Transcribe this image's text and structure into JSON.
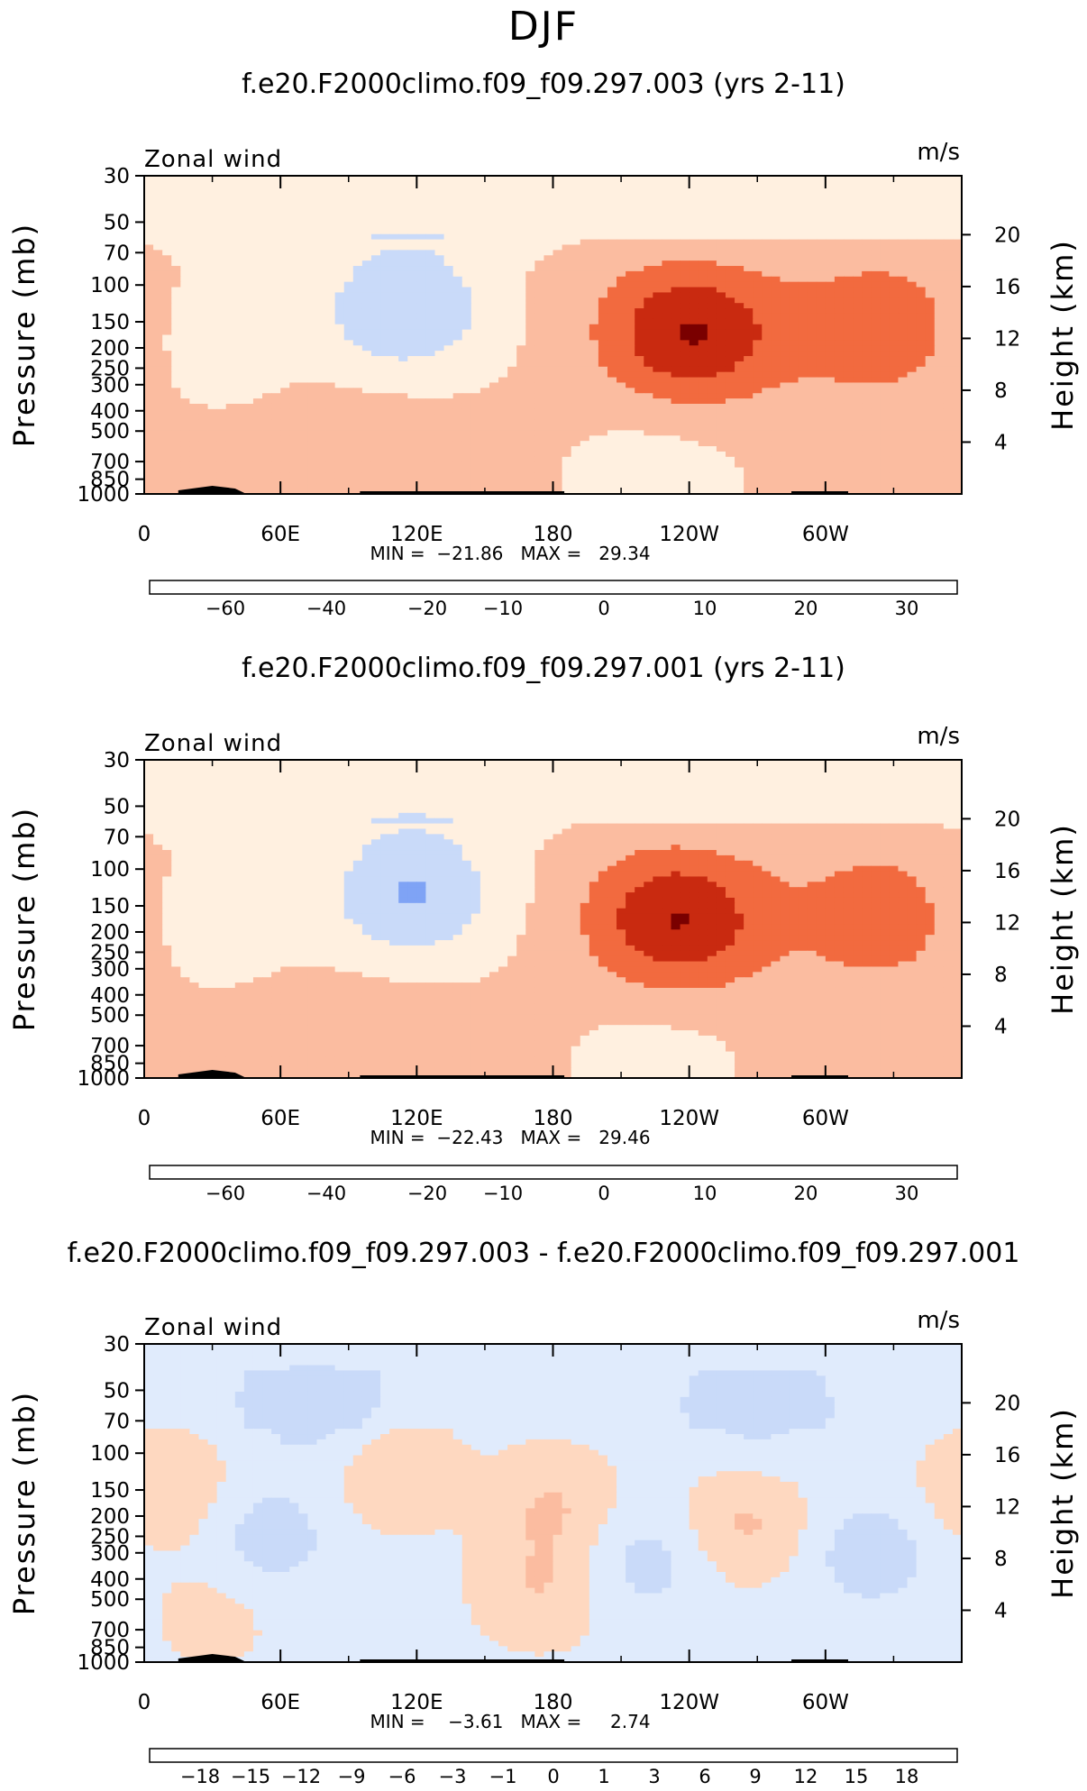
{
  "page": {
    "title": "DJF"
  },
  "colors": {
    "diverging_scale": [
      "#00008c",
      "#1a33cc",
      "#2b5ce6",
      "#4d7ff2",
      "#7fa3f5",
      "#a8c4f7",
      "#c9daf9",
      "#e0ebfc",
      "#fff0e0",
      "#fed8c0",
      "#fbbca0",
      "#f89670",
      "#f26a3f",
      "#e84a1f",
      "#c92a10",
      "#a01508",
      "#7a0000"
    ]
  },
  "panels": [
    {
      "title": "f.e20.F2000climo.f09_f09.297.003 (yrs 2-11)",
      "variable_label": "Zonal wind",
      "units_label": "m/s",
      "stats_label": "MIN =  −21.86   MAX =   29.34",
      "min": -21.86,
      "max": 29.34,
      "colorbar_ticks": [
        "−60",
        "−40",
        "−20",
        "−10",
        "0",
        "10",
        "20",
        "30"
      ]
    },
    {
      "title": "f.e20.F2000climo.f09_f09.297.001 (yrs 2-11)",
      "variable_label": "Zonal wind",
      "units_label": "m/s",
      "stats_label": "MIN =  −22.43   MAX =   29.46",
      "min": -22.43,
      "max": 29.46,
      "colorbar_ticks": [
        "−60",
        "−40",
        "−20",
        "−10",
        "0",
        "10",
        "20",
        "30"
      ]
    },
    {
      "title": "f.e20.F2000climo.f09_f09.297.003 - f.e20.F2000climo.f09_f09.297.001",
      "variable_label": "Zonal wind",
      "units_label": "m/s",
      "stats_label": "MIN =    −3.61   MAX =     2.74",
      "min": -3.61,
      "max": 2.74,
      "colorbar_ticks": [
        "−18",
        "−15",
        "−12",
        "−9",
        "−6",
        "−3",
        "−1",
        "0",
        "1",
        "3",
        "6",
        "9",
        "12",
        "15",
        "18"
      ]
    }
  ],
  "chart_data": [
    {
      "type": "heatmap",
      "title": "f.e20.F2000climo.f09_f09.297.003 (yrs 2-11)",
      "xlabel": "",
      "ylabel": "Pressure (mb)",
      "ylabel_right": "Height (km)",
      "x_ticks": [
        "0",
        "60E",
        "120E",
        "180",
        "120W",
        "60W"
      ],
      "y_ticks": [
        "30",
        "50",
        "70",
        "100",
        "150",
        "200",
        "250",
        "300",
        "400",
        "500",
        "700",
        "850",
        "1000"
      ],
      "y_ticks_right": [
        "20",
        "16",
        "12",
        "8",
        "4"
      ],
      "y_scale": "log",
      "xlim": [
        0,
        360
      ],
      "ylim": [
        1000,
        30
      ],
      "min": -21.86,
      "max": 29.34,
      "levels": [
        -60,
        -40,
        -20,
        -10,
        0,
        10,
        20,
        30
      ],
      "features": [
        {
          "lon": 115,
          "p": 130,
          "value": -21
        },
        {
          "lon": 30,
          "p": 170,
          "value": -7
        },
        {
          "lon": 240,
          "p": 170,
          "value": 29
        },
        {
          "lon": 325,
          "p": 160,
          "value": 16
        },
        {
          "lon": 285,
          "p": 190,
          "value": 2
        },
        {
          "lon": 100,
          "p": 680,
          "value": 7
        },
        {
          "lon": 225,
          "p": 800,
          "value": -6
        }
      ]
    },
    {
      "type": "heatmap",
      "title": "f.e20.F2000climo.f09_f09.297.001 (yrs 2-11)",
      "xlabel": "",
      "ylabel": "Pressure (mb)",
      "ylabel_right": "Height (km)",
      "x_ticks": [
        "0",
        "60E",
        "120E",
        "180",
        "120W",
        "60W"
      ],
      "y_ticks": [
        "30",
        "50",
        "70",
        "100",
        "150",
        "200",
        "250",
        "300",
        "400",
        "500",
        "700",
        "850",
        "1000"
      ],
      "y_ticks_right": [
        "20",
        "16",
        "12",
        "8",
        "4"
      ],
      "y_scale": "log",
      "xlim": [
        0,
        360
      ],
      "ylim": [
        1000,
        30
      ],
      "min": -22.43,
      "max": 29.46,
      "levels": [
        -60,
        -40,
        -20,
        -10,
        0,
        10,
        20,
        30
      ],
      "features": [
        {
          "lon": 118,
          "p": 130,
          "value": -22
        },
        {
          "lon": 28,
          "p": 165,
          "value": -7
        },
        {
          "lon": 235,
          "p": 175,
          "value": 29
        },
        {
          "lon": 325,
          "p": 170,
          "value": 15
        },
        {
          "lon": 290,
          "p": 190,
          "value": 1
        },
        {
          "lon": 100,
          "p": 700,
          "value": 6
        },
        {
          "lon": 225,
          "p": 820,
          "value": -5
        }
      ]
    },
    {
      "type": "heatmap",
      "title": "f.e20.F2000climo.f09_f09.297.003 - f.e20.F2000climo.f09_f09.297.001",
      "xlabel": "",
      "ylabel": "Pressure (mb)",
      "ylabel_right": "Height (km)",
      "x_ticks": [
        "0",
        "60E",
        "120E",
        "180",
        "120W",
        "60W"
      ],
      "y_ticks": [
        "30",
        "50",
        "70",
        "100",
        "150",
        "200",
        "250",
        "300",
        "400",
        "500",
        "700",
        "850",
        "1000"
      ],
      "y_ticks_right": [
        "20",
        "16",
        "12",
        "8",
        "4"
      ],
      "y_scale": "log",
      "xlim": [
        0,
        360
      ],
      "ylim": [
        1000,
        30
      ],
      "min": -3.61,
      "max": 2.74,
      "levels": [
        -18,
        -15,
        -12,
        -9,
        -6,
        -3,
        -1,
        0,
        1,
        3,
        6,
        9,
        12,
        15,
        18
      ],
      "features": [
        {
          "lon": 75,
          "p": 60,
          "value": -1.5
        },
        {
          "lon": 270,
          "p": 60,
          "value": -1.3
        },
        {
          "lon": 320,
          "p": 300,
          "value": -1.5
        },
        {
          "lon": 55,
          "p": 250,
          "value": -1.4
        },
        {
          "lon": 220,
          "p": 330,
          "value": -1.3
        },
        {
          "lon": 10,
          "p": 150,
          "value": 1.1
        },
        {
          "lon": 180,
          "p": 180,
          "value": 1.2
        },
        {
          "lon": 265,
          "p": 220,
          "value": 1.3
        },
        {
          "lon": 110,
          "p": 125,
          "value": 1.0
        },
        {
          "lon": 175,
          "p": 450,
          "value": 1.1
        },
        {
          "lon": 30,
          "p": 600,
          "value": 0.5
        }
      ]
    }
  ]
}
